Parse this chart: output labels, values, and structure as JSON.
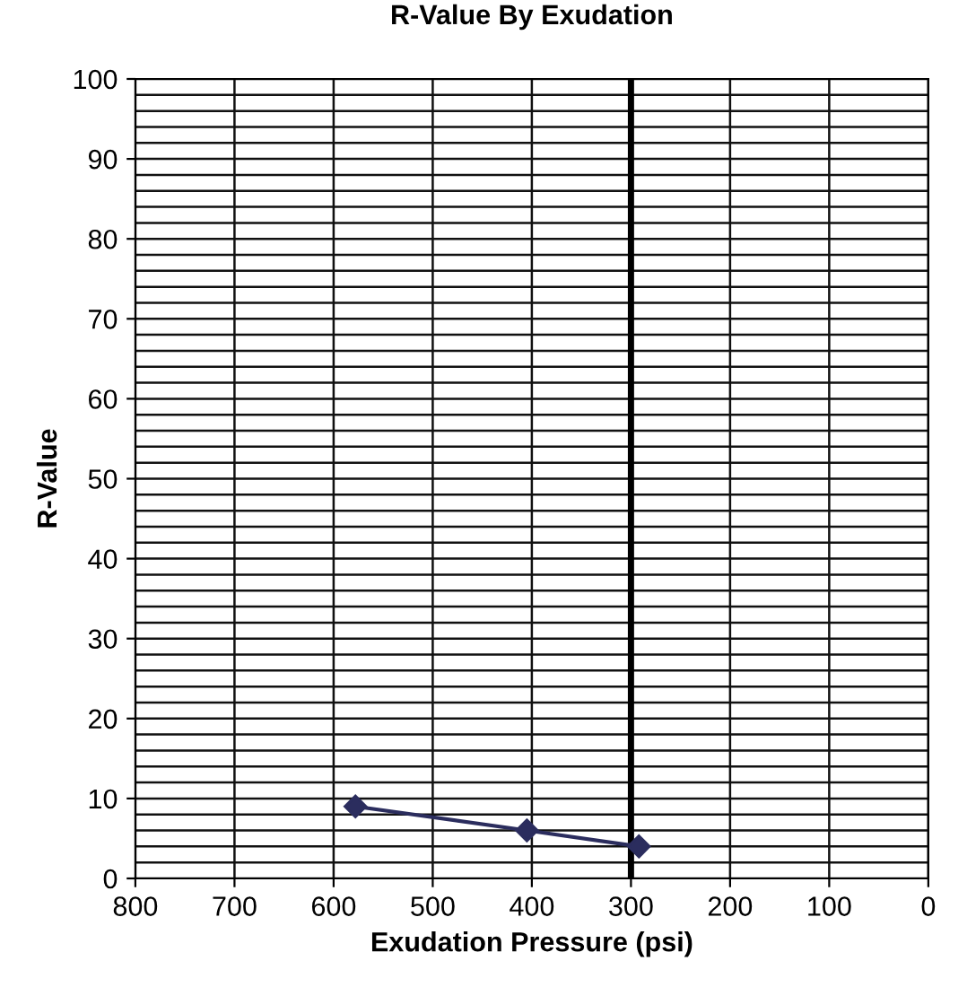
{
  "chart_data": {
    "type": "line",
    "title": "R-Value By Exudation",
    "xlabel": "Exudation Pressure (psi)",
    "ylabel": "R-Value",
    "series": [
      {
        "color": "#2b2d5e",
        "x": [
          578,
          405,
          292
        ],
        "values": [
          9,
          6,
          4
        ]
      }
    ],
    "xlim": [
      800,
      0
    ],
    "xticks": [
      800,
      700,
      600,
      500,
      400,
      300,
      200,
      100,
      0
    ],
    "ylim": [
      0,
      100
    ],
    "yticks": [
      0,
      {
        "value": 2,
        "label": null
      },
      {
        "value": 4,
        "label": null
      },
      {
        "value": 6,
        "label": null
      },
      {
        "value": 8,
        "label": null
      },
      10,
      {
        "value": 12,
        "label": null
      },
      {
        "value": 14,
        "label": null
      },
      {
        "value": 16,
        "label": null
      },
      {
        "value": 18,
        "label": null
      },
      20,
      {
        "value": 22,
        "label": null
      },
      {
        "value": 24,
        "label": null
      },
      {
        "value": 26,
        "label": null
      },
      {
        "value": 28,
        "label": null
      },
      30,
      {
        "value": 32,
        "label": null
      },
      {
        "value": 34,
        "label": null
      },
      {
        "value": 36,
        "label": null
      },
      {
        "value": 38,
        "label": null
      },
      40,
      {
        "value": 42,
        "label": null
      },
      {
        "value": 44,
        "label": null
      },
      {
        "value": 46,
        "label": null
      },
      {
        "value": 48,
        "label": null
      },
      50,
      {
        "value": 52,
        "label": null
      },
      {
        "value": 54,
        "label": null
      },
      {
        "value": 56,
        "label": null
      },
      {
        "value": 58,
        "label": null
      },
      60,
      {
        "value": 62,
        "label": null
      },
      {
        "value": 64,
        "label": null
      },
      {
        "value": 66,
        "label": null
      },
      {
        "value": 68,
        "label": null
      },
      70,
      {
        "value": 72,
        "label": null
      },
      {
        "value": 74,
        "label": null
      },
      {
        "value": 76,
        "label": null
      },
      {
        "value": 78,
        "label": null
      },
      80,
      {
        "value": 82,
        "label": null
      },
      {
        "value": 84,
        "label": null
      },
      {
        "value": 86,
        "label": null
      },
      {
        "value": 88,
        "label": null
      },
      90,
      {
        "value": 92,
        "label": null
      },
      {
        "value": 94,
        "label": null
      },
      {
        "value": 96,
        "label": null
      },
      {
        "value": 98,
        "label": null
      },
      100
    ],
    "ref_lines": [
      {
        "axis": "x",
        "value": 300,
        "color": "#000000"
      }
    ],
    "grid": true,
    "marker": "diamond",
    "line_style": "solid",
    "legend": false
  }
}
